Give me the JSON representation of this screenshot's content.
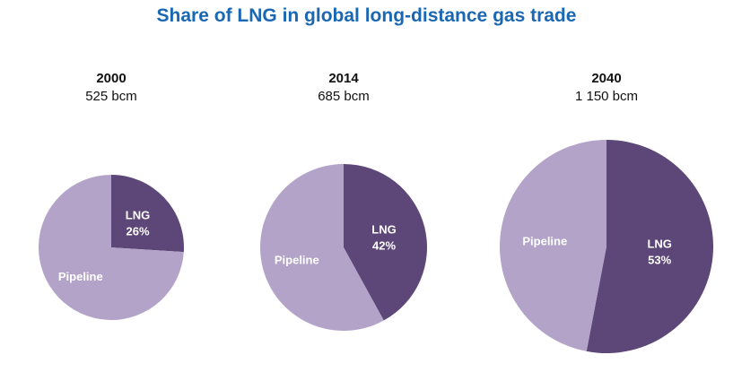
{
  "title": "Share of LNG in global long-distance gas trade",
  "colors": {
    "title": "#1a67b3",
    "lng": "#5d4778",
    "pipeline": "#b3a3c8"
  },
  "chart_data": {
    "type": "pie",
    "title": "Share of LNG in global long-distance gas trade",
    "charts": [
      {
        "year": "2000",
        "volume_label": "525 bcm",
        "volume_bcm": 525,
        "slices": [
          {
            "label": "LNG",
            "value": 26,
            "value_label": "26%"
          },
          {
            "label": "Pipeline",
            "value": 74
          }
        ]
      },
      {
        "year": "2014",
        "volume_label": "685 bcm",
        "volume_bcm": 685,
        "slices": [
          {
            "label": "LNG",
            "value": 42,
            "value_label": "42%"
          },
          {
            "label": "Pipeline",
            "value": 58
          }
        ]
      },
      {
        "year": "2040",
        "volume_label": "1 150 bcm",
        "volume_bcm": 1150,
        "slices": [
          {
            "label": "LNG",
            "value": 53,
            "value_label": "53%"
          },
          {
            "label": "Pipeline",
            "value": 47
          }
        ]
      }
    ]
  }
}
